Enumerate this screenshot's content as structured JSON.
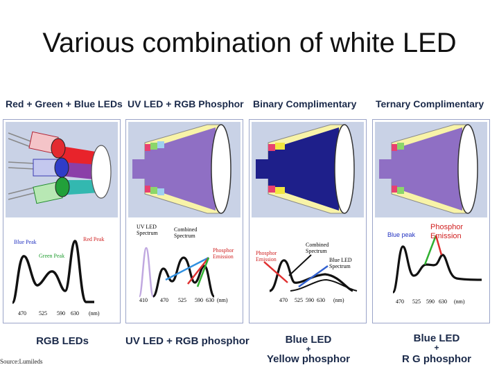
{
  "title": "Various combination of white LED",
  "source": "Source:Lumileds",
  "panels": [
    {
      "title": "Red + Green + Blue LEDs",
      "spectrum": {
        "blue_peak": "Blue Peak",
        "green_peak": "Green Peak",
        "red_peak": "Red Peak",
        "ticks": [
          "470",
          "525",
          "590",
          "630",
          "(nm)"
        ]
      },
      "bottom_label": "RGB LEDs"
    },
    {
      "title": "UV LED + RGB Phosphor",
      "spectrum": {
        "uv_led": "UV LED",
        "uv_spectrum": "Spectrum",
        "combined": "Combined",
        "combined_spectrum": "Spectrum",
        "phosphor": "Phosphor",
        "emission": "Emission",
        "ticks": [
          "410",
          "470",
          "525",
          "590",
          "630",
          "(nm)"
        ]
      },
      "bottom_label": "UV LED + RGB phosphor"
    },
    {
      "title": "Binary Complimentary",
      "spectrum": {
        "phosphor": "Phosphor",
        "emission": "Emission",
        "combined": "Combined",
        "combined_spectrum": "Spectrum",
        "blue_led": "Blue LED",
        "blue_spectrum": "Spectrum",
        "ticks": [
          "470",
          "525",
          "590",
          "630",
          "(nm)"
        ]
      },
      "bottom_label_1": "Blue LED",
      "bottom_plus": "+",
      "bottom_label_2": "Yellow phosphor"
    },
    {
      "title": "Ternary Complimentary",
      "spectrum": {
        "blue_peak": "Blue peak",
        "phosphor": "Phosphor",
        "emission": "Emission",
        "ticks": [
          "470",
          "525",
          "590",
          "630",
          "(nm)"
        ]
      },
      "bottom_label_1": "Blue LED",
      "bottom_plus": "+",
      "bottom_label_2": "R G phosphor"
    }
  ]
}
